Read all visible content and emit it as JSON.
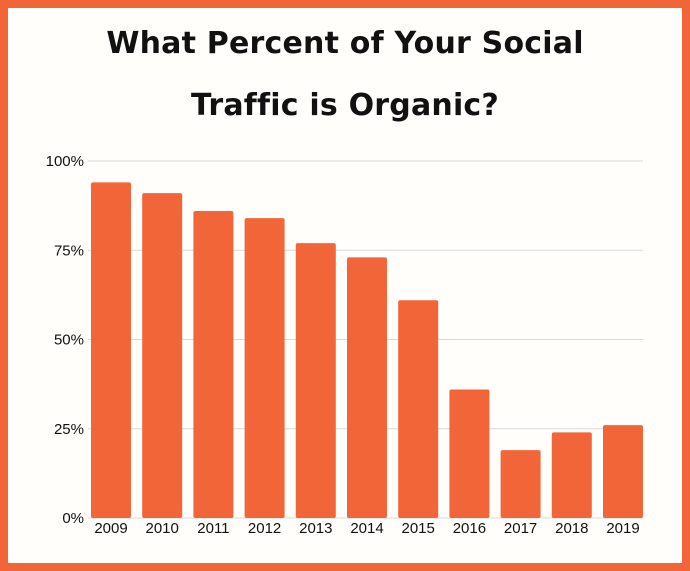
{
  "chart_data": {
    "type": "bar",
    "title_lines": [
      "What Percent of Your Social",
      "Traffic is Organic?"
    ],
    "categories": [
      "2009",
      "2010",
      "2011",
      "2012",
      "2013",
      "2014",
      "2015",
      "2016",
      "2017",
      "2018",
      "2019"
    ],
    "values": [
      94,
      91,
      86,
      84,
      77,
      73,
      61,
      36,
      19,
      24,
      26
    ],
    "ylim": [
      0,
      100
    ],
    "yticks": [
      0,
      25,
      50,
      75,
      100
    ],
    "ytick_labels": [
      "0%",
      "25%",
      "50%",
      "75%",
      "100%"
    ],
    "xlabel": "",
    "ylabel": "",
    "grid": true,
    "legend": "none"
  },
  "colors": {
    "bar": "#f26539",
    "border": "#f26539",
    "grid": "#d9d9d9",
    "text": "#111111"
  }
}
